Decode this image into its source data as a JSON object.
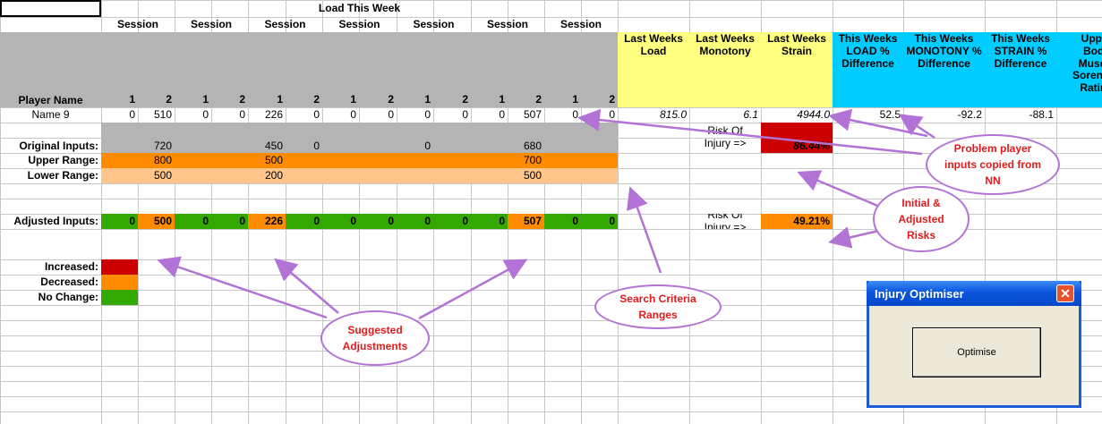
{
  "sheet": {
    "load_title": "Load This Week",
    "session_label": "Session",
    "player_name_header": "Player Name",
    "session_numbers": [
      "1",
      "2",
      "1",
      "2",
      "1",
      "2",
      "1",
      "2",
      "1",
      "2",
      "1",
      "2",
      "1",
      "2"
    ],
    "stat_headers": [
      "Last Weeks Load",
      "Last Weeks Monotony",
      "Last Weeks Strain",
      "This Weeks LOAD % Difference",
      "This Weeks MONOTONY % Difference",
      "This Weeks STRAIN % Difference",
      "Upper Body Muscle Soreness Rating"
    ],
    "player": {
      "name": "Name 9",
      "sessions": [
        "0",
        "510",
        "0",
        "0",
        "226",
        "0",
        "0",
        "0",
        "0",
        "0",
        "0",
        "507",
        "0",
        "0"
      ],
      "stats": [
        "815.0",
        "6.1",
        "4944.0",
        "52.5",
        "-92.2",
        "-88.1"
      ]
    },
    "original_inputs": {
      "label": "Original Inputs:",
      "values": [
        "",
        "720",
        "",
        "",
        "450",
        "0",
        "",
        "",
        "0",
        "",
        "",
        "680",
        "",
        ""
      ]
    },
    "upper_range": {
      "label": "Upper Range:",
      "values": [
        "",
        "800",
        "",
        "",
        "500",
        "",
        "",
        "",
        "",
        "",
        "",
        "700",
        "",
        ""
      ]
    },
    "lower_range": {
      "label": "Lower Range:",
      "values": [
        "",
        "500",
        "",
        "",
        "200",
        "",
        "",
        "",
        "",
        "",
        "",
        "500",
        "",
        ""
      ]
    },
    "adjusted_inputs": {
      "label": "Adjusted Inputs:",
      "values": [
        "0",
        "500",
        "0",
        "0",
        "226",
        "0",
        "0",
        "0",
        "0",
        "0",
        "0",
        "507",
        "0",
        "0"
      ]
    },
    "risk_label": "Risk Of Injury =>",
    "initial_risk": "86.44%",
    "adjusted_risk": "49.21%",
    "legend": {
      "increased": "Increased:",
      "decreased": "Decreased:",
      "no_change": "No Change:"
    },
    "colors": {
      "header_gray": "#b4b4b4",
      "yellow": "#ffff7f",
      "cyan": "#00ccff",
      "orange": "#ff8c00",
      "light_orange": "#ffc58a",
      "green": "#33a800",
      "red": "#cc0000",
      "callout_border": "#b272d6"
    }
  },
  "callouts": {
    "problem": "Problem player inputs copied from NN",
    "risks": "Initial & Adjusted Risks",
    "ranges": "Search Criteria Ranges",
    "adjustments": "Suggested Adjustments"
  },
  "dialog": {
    "title": "Injury Optimiser",
    "button": "Optimise",
    "close": "✕"
  }
}
